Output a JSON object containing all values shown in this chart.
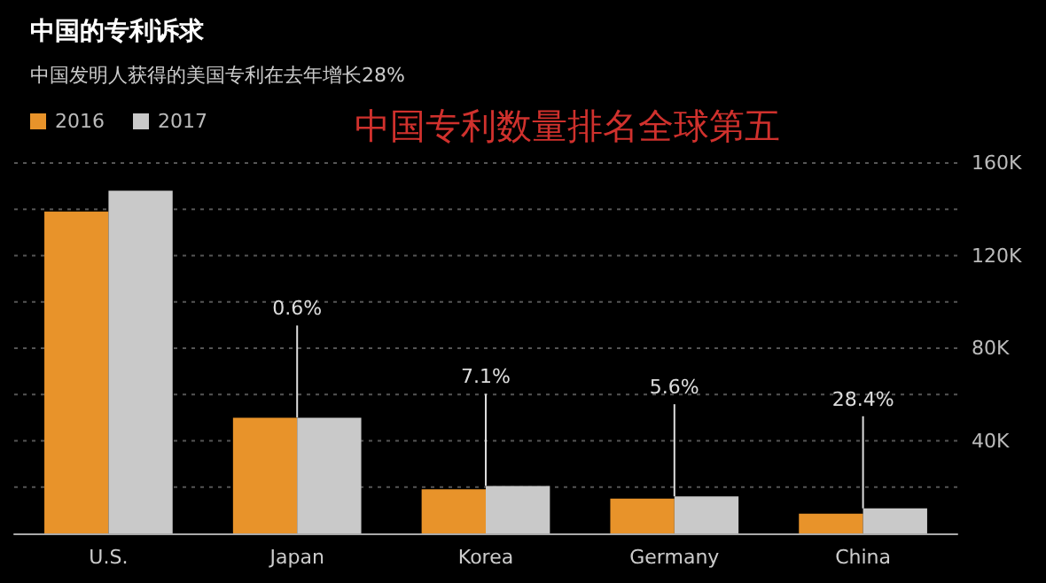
{
  "chart_data": {
    "type": "bar",
    "title": "中国的专利诉求",
    "subtitle": "中国发明人获得的美国专利在去年增长28%",
    "categories": [
      "U.S.",
      "Japan",
      "Korea",
      "Germany",
      "China"
    ],
    "series": [
      {
        "name": "2016",
        "color": "#e8932a",
        "values": [
          139000,
          50000,
          19000,
          15000,
          8500
        ]
      },
      {
        "name": "2017",
        "color": "#c9c9c9",
        "values": [
          148000,
          50000,
          20500,
          16000,
          10800
        ]
      }
    ],
    "ylim": [
      0,
      160000
    ],
    "yticks": [
      {
        "value": 0,
        "label": null
      },
      {
        "value": 20000,
        "label": null
      },
      {
        "value": 40000,
        "label": "40K"
      },
      {
        "value": 60000,
        "label": null
      },
      {
        "value": 80000,
        "label": "80K"
      },
      {
        "value": 100000,
        "label": null
      },
      {
        "value": 120000,
        "label": "120K"
      },
      {
        "value": 140000,
        "label": null
      },
      {
        "value": 160000,
        "label": "160K"
      }
    ],
    "grid": "y",
    "legend": "top left",
    "annotations": [
      "中国专利数量排名全球第五",
      {
        "text": "0.6%",
        "x": "Japan",
        "y": 50000
      },
      {
        "text": "7.1%",
        "x": "Korea",
        "y": 20500
      },
      {
        "text": "5.6%",
        "x": "Germany",
        "y": 16000
      },
      {
        "text": "28.4%",
        "x": "China",
        "y": 10800
      }
    ]
  }
}
